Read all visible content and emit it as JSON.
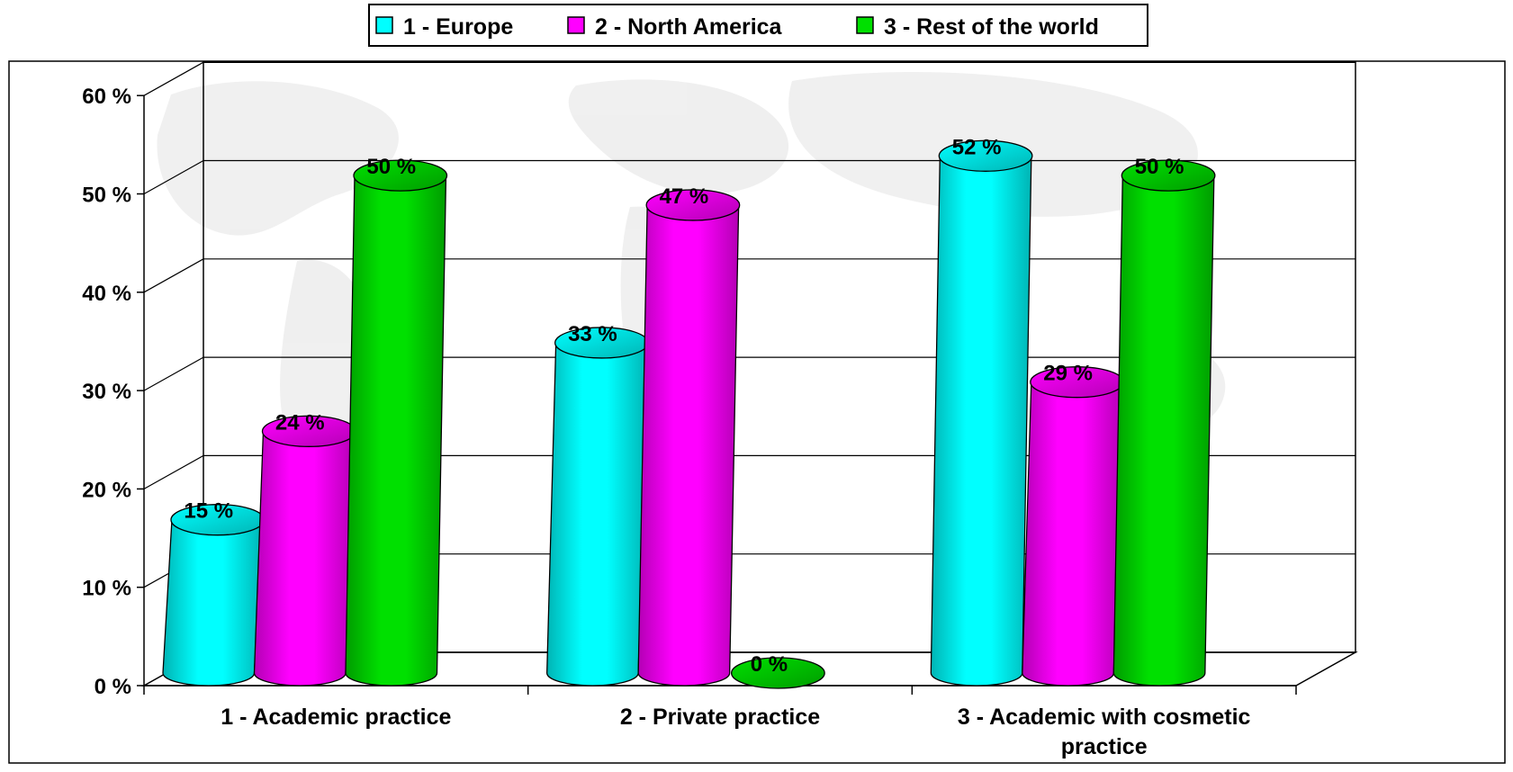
{
  "chart_data": {
    "type": "bar",
    "style": "3d-cylinder",
    "categories": [
      "1 - Academic practice",
      "2 - Private practice",
      "3 - Academic with cosmetic practice"
    ],
    "category_lines": [
      [
        "1 - Academic practice"
      ],
      [
        "2 - Private practice"
      ],
      [
        "3 - Academic with cosmetic",
        "practice"
      ]
    ],
    "series": [
      {
        "name": "1 - Europe",
        "values": [
          15,
          33,
          52
        ],
        "labels": [
          "15 %",
          "33 %",
          "52 %"
        ],
        "color": "#00FFFF",
        "dark": "#00B4B4"
      },
      {
        "name": "2 - North America",
        "values": [
          24,
          47,
          29
        ],
        "labels": [
          "24 %",
          "47 %",
          "29 %"
        ],
        "color": "#FF00FF",
        "dark": "#B400B4"
      },
      {
        "name": "3 - Rest of the world",
        "values": [
          50,
          0,
          50
        ],
        "labels": [
          "50 %",
          "0 %",
          "50 %"
        ],
        "color": "#00E000",
        "dark": "#009C00"
      }
    ],
    "ylim": [
      0,
      60
    ],
    "y_ticks": [
      0,
      10,
      20,
      30,
      40,
      50,
      60
    ],
    "y_tick_labels": [
      "0 %",
      "10 %",
      "20 %",
      "30 %",
      "40 %",
      "50 %",
      "60 %"
    ],
    "title": "",
    "xlabel": "",
    "ylabel": "",
    "grid": true,
    "legend_position": "top-center"
  }
}
